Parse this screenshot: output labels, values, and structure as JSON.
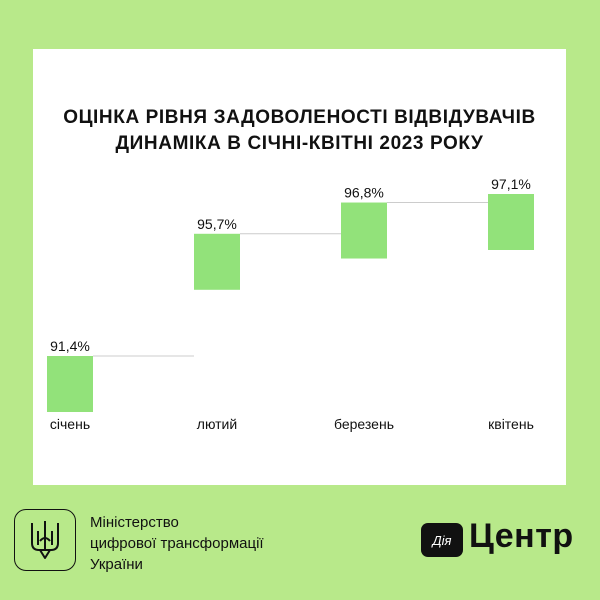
{
  "header": {
    "title_line1": "ОЦІНКА РІВНЯ ЗАДОВОЛЕНОСТІ ВІДВІДУВАЧІВ",
    "title_line2": "ДИНАМІКА В СІЧНІ-КВІТНІ 2023 РОКУ"
  },
  "chart_data": {
    "type": "bar",
    "subtype": "waterfall-steps",
    "title": "ОЦІНКА РІВНЯ ЗАДОВОЛЕНОСТІ ВІДВІДУВАЧІВ ДИНАМІКА В СІЧНІ-КВІТНІ 2023 РОКУ",
    "categories": [
      "січень",
      "лютий",
      "березень",
      "квітень"
    ],
    "values": [
      91.4,
      95.7,
      96.8,
      97.1
    ],
    "value_labels": [
      "91,4%",
      "95,7%",
      "96,8%",
      "97,1%"
    ],
    "unit": "%",
    "bar_color": "#92e27a",
    "connector_color": "#cccccc",
    "grid": false,
    "legend": "none"
  },
  "footer": {
    "ministry_line1": "Міністерство",
    "ministry_line2": "цифрової трансформації",
    "ministry_line3": "України",
    "badge": "Дія",
    "brand": "Центр"
  },
  "colors": {
    "background": "#b8e98a",
    "card": "#ffffff",
    "text": "#111111"
  },
  "icons": {
    "emblem": "trident-icon"
  }
}
